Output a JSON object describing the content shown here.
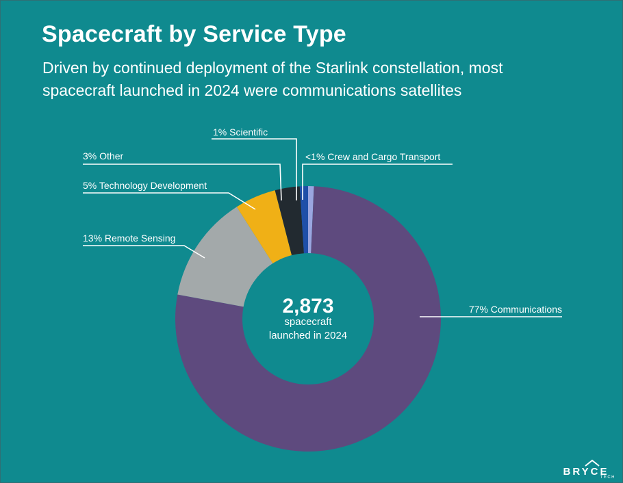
{
  "header": {
    "title": "Spacecraft by Service Type",
    "subtitle_line1": "Driven by continued deployment of the Starlink constellation, most",
    "subtitle_line2": "spacecraft launched in 2024 were communications satellites"
  },
  "center": {
    "value": "2,873",
    "line1": "spacecraft",
    "line2": "launched in 2024"
  },
  "chart_data": {
    "type": "pie",
    "variant": "donut",
    "total": 2873,
    "slices": [
      {
        "name": "Crew and Cargo Transport",
        "label": "<1% Crew and Cargo Transport",
        "value": 0.7,
        "color": "#9aa6e0"
      },
      {
        "name": "Communications",
        "label": "77% Communications",
        "value": 77,
        "color": "#5e4a7e"
      },
      {
        "name": "Remote Sensing",
        "label": "13% Remote Sensing",
        "value": 13,
        "color": "#a3a9aa"
      },
      {
        "name": "Technology Development",
        "label": "5% Technology Development",
        "value": 5,
        "color": "#f0b016"
      },
      {
        "name": "Other",
        "label": "3% Other",
        "value": 3,
        "color": "#222a30"
      },
      {
        "name": "Scientific",
        "label": "1% Scientific",
        "value": 1,
        "color": "#1f4fa8"
      }
    ]
  },
  "colors": {
    "background": "#0f8a8f",
    "text": "#ffffff"
  },
  "logo": {
    "text": "BRYCE",
    "subtext": "TECH"
  }
}
